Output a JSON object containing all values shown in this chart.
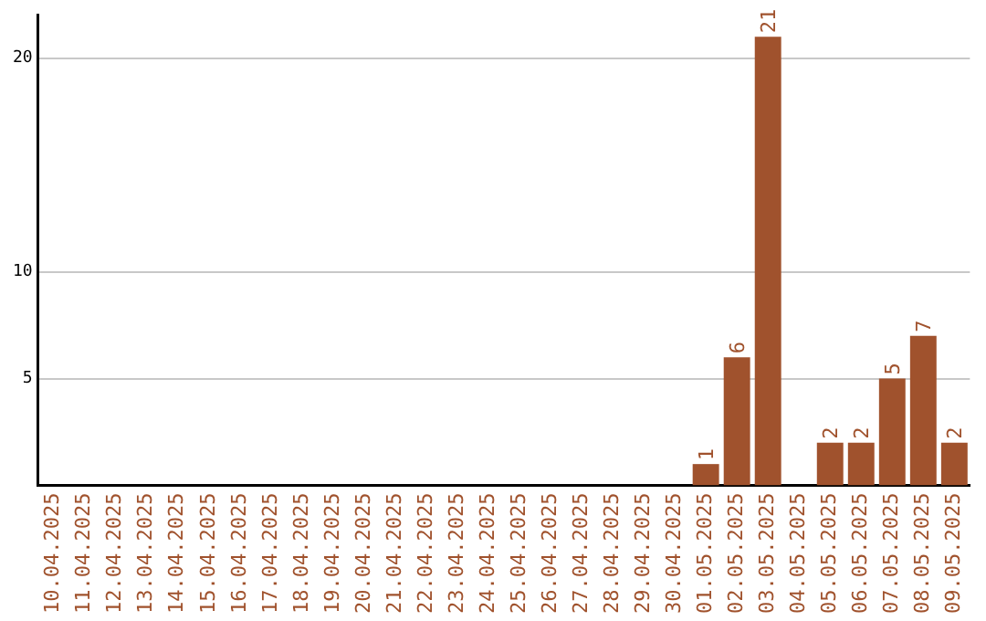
{
  "chart_data": {
    "type": "bar",
    "categories": [
      "10.04.2025",
      "11.04.2025",
      "12.04.2025",
      "13.04.2025",
      "14.04.2025",
      "15.04.2025",
      "16.04.2025",
      "17.04.2025",
      "18.04.2025",
      "19.04.2025",
      "20.04.2025",
      "21.04.2025",
      "22.04.2025",
      "23.04.2025",
      "24.04.2025",
      "25.04.2025",
      "26.04.2025",
      "27.04.2025",
      "28.04.2025",
      "29.04.2025",
      "30.04.2025",
      "01.05.2025",
      "02.05.2025",
      "03.05.2025",
      "04.05.2025",
      "05.05.2025",
      "06.05.2025",
      "07.05.2025",
      "08.05.2025",
      "09.05.2025"
    ],
    "values": [
      0,
      0,
      0,
      0,
      0,
      0,
      0,
      0,
      0,
      0,
      0,
      0,
      0,
      0,
      0,
      0,
      0,
      0,
      0,
      0,
      0,
      1,
      6,
      21,
      0,
      2,
      2,
      5,
      7,
      2
    ],
    "value_labels": [
      null,
      null,
      null,
      null,
      null,
      null,
      null,
      null,
      null,
      null,
      null,
      null,
      null,
      null,
      null,
      null,
      null,
      null,
      null,
      null,
      null,
      "1",
      "6",
      "21",
      null,
      "2",
      "2",
      "5",
      "7",
      "2"
    ],
    "color": "#a0522d",
    "ylim": [
      0,
      22
    ],
    "yticks": [
      5,
      10,
      20
    ],
    "grid": "y",
    "legend": false
  }
}
